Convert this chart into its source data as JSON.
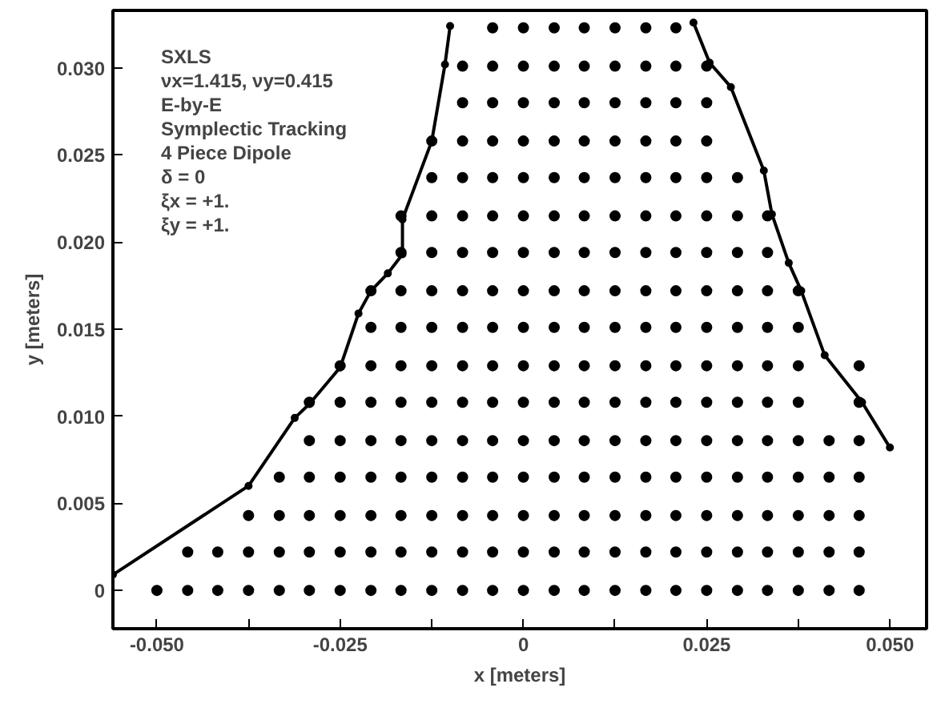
{
  "chart_data": {
    "type": "scatter",
    "xlabel": "x [meters]",
    "ylabel": "y [meters]",
    "xlim": [
      -0.056,
      0.055
    ],
    "ylim": [
      -0.0022,
      0.0333
    ],
    "xticks": [
      {
        "value": -0.05,
        "label": "-0.050"
      },
      {
        "value": -0.0375,
        "label": null
      },
      {
        "value": -0.025,
        "label": "-0.025"
      },
      {
        "value": -0.0125,
        "label": null
      },
      0,
      {
        "value": 0.0125,
        "label": null
      },
      {
        "value": 0.025,
        "label": "0.025"
      },
      {
        "value": 0.0375,
        "label": null
      },
      {
        "value": 0.05,
        "label": "0.050"
      }
    ],
    "yticks": [
      0,
      {
        "value": 0.005,
        "label": "0.005"
      },
      {
        "value": 0.01,
        "label": "0.010"
      },
      {
        "value": 0.015,
        "label": "0.015"
      },
      {
        "value": 0.02,
        "label": "0.020"
      },
      {
        "value": 0.025,
        "label": "0.025"
      },
      {
        "value": 0.03,
        "label": "0.030"
      }
    ],
    "grid": false,
    "annotations": [
      "SXLS",
      "νx=1.415, νy=0.415",
      "E-by-E",
      "Symplectic Tracking",
      "4 Piece Dipole",
      "δ = 0",
      "ξx = +1.",
      "ξy = +1."
    ],
    "series": [
      {
        "marker": "circle",
        "color": "#000000",
        "x": [
          -0.05,
          -0.0458,
          -0.0417,
          -0.0375,
          -0.0333,
          -0.0292,
          -0.025,
          -0.0208,
          -0.0167,
          -0.0125,
          -0.0083,
          -0.0042,
          0,
          0.0042,
          0.0083,
          0.0125,
          0.0167,
          0.0208,
          0.025,
          0.0292,
          0.0333,
          0.0375,
          0.0417,
          0.0458,
          -0.0458,
          -0.0417,
          -0.0375,
          -0.0333,
          -0.0292,
          -0.025,
          -0.0208,
          -0.0167,
          -0.0125,
          -0.0083,
          -0.0042,
          0,
          0.0042,
          0.0083,
          0.0125,
          0.0167,
          0.0208,
          0.025,
          0.0292,
          0.0333,
          0.0375,
          0.0417,
          0.0458,
          -0.0375,
          -0.0333,
          -0.0292,
          -0.025,
          -0.0208,
          -0.0167,
          -0.0125,
          -0.0083,
          -0.0042,
          0,
          0.0042,
          0.0083,
          0.0125,
          0.0167,
          0.0208,
          0.025,
          0.0292,
          0.0333,
          0.0375,
          0.0417,
          0.0458,
          -0.0333,
          -0.0292,
          -0.025,
          -0.0208,
          -0.0167,
          -0.0125,
          -0.0083,
          -0.0042,
          0,
          0.0042,
          0.0083,
          0.0125,
          0.0167,
          0.0208,
          0.025,
          0.0292,
          0.0333,
          0.0375,
          0.0417,
          0.0458,
          -0.0292,
          -0.025,
          -0.0208,
          -0.0167,
          -0.0125,
          -0.0083,
          -0.0042,
          0,
          0.0042,
          0.0083,
          0.0125,
          0.0167,
          0.0208,
          0.025,
          0.0292,
          0.0333,
          0.0375,
          0.0417,
          0.0458,
          -0.0292,
          -0.025,
          -0.0208,
          -0.0167,
          -0.0125,
          -0.0083,
          -0.0042,
          0,
          0.0042,
          0.0083,
          0.0125,
          0.0167,
          0.0208,
          0.025,
          0.0292,
          0.0333,
          0.0375,
          0.0458,
          -0.025,
          -0.0208,
          -0.0167,
          -0.0125,
          -0.0083,
          -0.0042,
          0,
          0.0042,
          0.0083,
          0.0125,
          0.0167,
          0.0208,
          0.025,
          0.0292,
          0.0333,
          0.0375,
          0.0458,
          -0.0208,
          -0.0167,
          -0.0125,
          -0.0083,
          -0.0042,
          0,
          0.0042,
          0.0083,
          0.0125,
          0.0167,
          0.0208,
          0.025,
          0.0292,
          0.0333,
          0.0375,
          -0.0208,
          -0.0167,
          -0.0125,
          -0.0083,
          -0.0042,
          0,
          0.0042,
          0.0083,
          0.0125,
          0.0167,
          0.0208,
          0.025,
          0.0292,
          0.0333,
          0.0375,
          -0.0167,
          -0.0125,
          -0.0083,
          -0.0042,
          0,
          0.0042,
          0.0083,
          0.0125,
          0.0167,
          0.0208,
          0.025,
          0.0292,
          0.0333,
          -0.0167,
          -0.0125,
          -0.0083,
          -0.0042,
          0,
          0.0042,
          0.0083,
          0.0125,
          0.0167,
          0.0208,
          0.025,
          0.0292,
          0.0333,
          -0.0125,
          -0.0083,
          -0.0042,
          0,
          0.0042,
          0.0083,
          0.0125,
          0.0167,
          0.0208,
          0.025,
          0.0292,
          -0.0125,
          -0.0083,
          -0.0042,
          0,
          0.0042,
          0.0083,
          0.0125,
          0.0167,
          0.0208,
          0.025,
          -0.0083,
          -0.0042,
          0,
          0.0042,
          0.0083,
          0.0125,
          0.0167,
          0.0208,
          0.025,
          -0.0083,
          -0.0042,
          0,
          0.0042,
          0.0083,
          0.0125,
          0.0167,
          0.0208,
          0.025,
          -0.0042,
          0,
          0.0042,
          0.0083,
          0.0125,
          0.0167,
          0.0208
        ],
        "values": [
          0,
          0,
          0,
          0,
          0,
          0,
          0,
          0,
          0,
          0,
          0,
          0,
          0,
          0,
          0,
          0,
          0,
          0,
          0,
          0,
          0,
          0,
          0,
          0,
          0.0022,
          0.0022,
          0.0022,
          0.0022,
          0.0022,
          0.0022,
          0.0022,
          0.0022,
          0.0022,
          0.0022,
          0.0022,
          0.0022,
          0.0022,
          0.0022,
          0.0022,
          0.0022,
          0.0022,
          0.0022,
          0.0022,
          0.0022,
          0.0022,
          0.0022,
          0.0022,
          0.0043,
          0.0043,
          0.0043,
          0.0043,
          0.0043,
          0.0043,
          0.0043,
          0.0043,
          0.0043,
          0.0043,
          0.0043,
          0.0043,
          0.0043,
          0.0043,
          0.0043,
          0.0043,
          0.0043,
          0.0043,
          0.0043,
          0.0043,
          0.0043,
          0.0065,
          0.0065,
          0.0065,
          0.0065,
          0.0065,
          0.0065,
          0.0065,
          0.0065,
          0.0065,
          0.0065,
          0.0065,
          0.0065,
          0.0065,
          0.0065,
          0.0065,
          0.0065,
          0.0065,
          0.0065,
          0.0065,
          0.0065,
          0.0086,
          0.0086,
          0.0086,
          0.0086,
          0.0086,
          0.0086,
          0.0086,
          0.0086,
          0.0086,
          0.0086,
          0.0086,
          0.0086,
          0.0086,
          0.0086,
          0.0086,
          0.0086,
          0.0086,
          0.0086,
          0.0086,
          0.0108,
          0.0108,
          0.0108,
          0.0108,
          0.0108,
          0.0108,
          0.0108,
          0.0108,
          0.0108,
          0.0108,
          0.0108,
          0.0108,
          0.0108,
          0.0108,
          0.0108,
          0.0108,
          0.0108,
          0.0108,
          0.0129,
          0.0129,
          0.0129,
          0.0129,
          0.0129,
          0.0129,
          0.0129,
          0.0129,
          0.0129,
          0.0129,
          0.0129,
          0.0129,
          0.0129,
          0.0129,
          0.0129,
          0.0129,
          0.0129,
          0.0151,
          0.0151,
          0.0151,
          0.0151,
          0.0151,
          0.0151,
          0.0151,
          0.0151,
          0.0151,
          0.0151,
          0.0151,
          0.0151,
          0.0151,
          0.0151,
          0.0151,
          0.0172,
          0.0172,
          0.0172,
          0.0172,
          0.0172,
          0.0172,
          0.0172,
          0.0172,
          0.0172,
          0.0172,
          0.0172,
          0.0172,
          0.0172,
          0.0172,
          0.0172,
          0.0194,
          0.0194,
          0.0194,
          0.0194,
          0.0194,
          0.0194,
          0.0194,
          0.0194,
          0.0194,
          0.0194,
          0.0194,
          0.0194,
          0.0194,
          0.0215,
          0.0215,
          0.0215,
          0.0215,
          0.0215,
          0.0215,
          0.0215,
          0.0215,
          0.0215,
          0.0215,
          0.0215,
          0.0215,
          0.0215,
          0.0237,
          0.0237,
          0.0237,
          0.0237,
          0.0237,
          0.0237,
          0.0237,
          0.0237,
          0.0237,
          0.0237,
          0.0237,
          0.0258,
          0.0258,
          0.0258,
          0.0258,
          0.0258,
          0.0258,
          0.0258,
          0.0258,
          0.0258,
          0.0258,
          0.028,
          0.028,
          0.028,
          0.028,
          0.028,
          0.028,
          0.028,
          0.028,
          0.028,
          0.0301,
          0.0301,
          0.0301,
          0.0301,
          0.0301,
          0.0301,
          0.0301,
          0.0301,
          0.0301,
          0.0323,
          0.0323,
          0.0323,
          0.0323,
          0.0323,
          0.0323,
          0.0323
        ]
      },
      {
        "type": "line",
        "marker": "circle",
        "line_style": "solid",
        "color": "#000000",
        "x": [
          -0.056,
          -0.0375,
          -0.0312,
          -0.0292,
          -0.025,
          -0.0225,
          -0.0208,
          -0.0185,
          -0.0165,
          -0.0165,
          -0.0125,
          -0.0107,
          -0.01
        ],
        "values": [
          0.0009,
          0.006,
          0.0099,
          0.0107,
          0.0128,
          0.0159,
          0.0172,
          0.0182,
          0.0193,
          0.0213,
          0.0258,
          0.0302,
          0.0324
        ]
      },
      {
        "type": "line",
        "marker": "circle",
        "line_style": "solid",
        "color": "#000000",
        "x": [
          0.0232,
          0.0254,
          0.0283,
          0.0328,
          0.0339,
          0.0362,
          0.0379,
          0.0411,
          0.0462,
          0.05
        ],
        "values": [
          0.0326,
          0.0303,
          0.0289,
          0.0241,
          0.0216,
          0.0188,
          0.0172,
          0.0135,
          0.0108,
          0.0082
        ]
      }
    ]
  }
}
